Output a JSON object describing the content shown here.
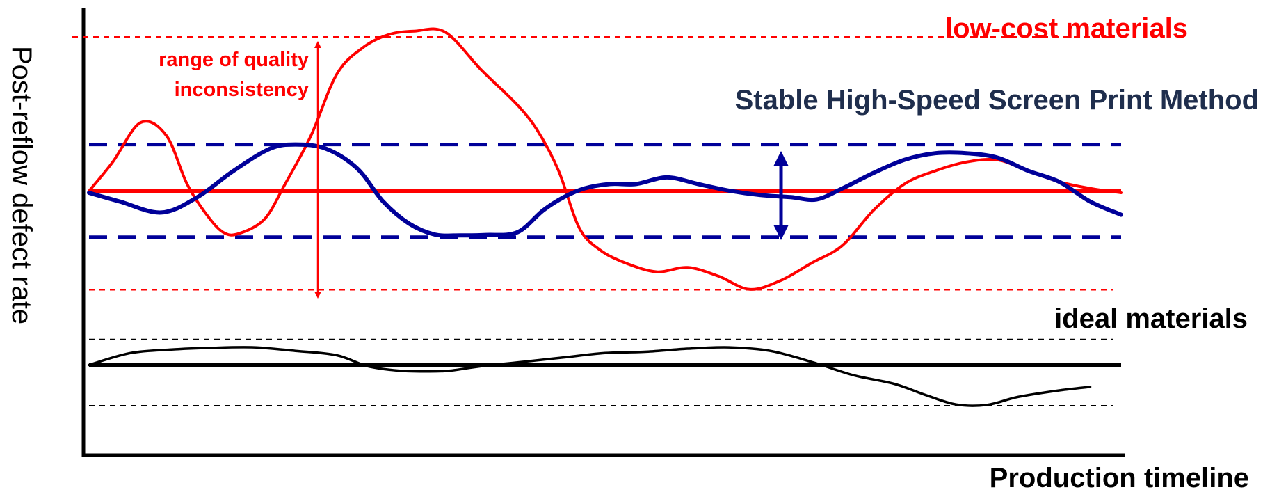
{
  "chart_data": {
    "type": "line",
    "title": "",
    "xlabel": "Production timeline",
    "ylabel": "Post-reflow defect rate",
    "grid": false,
    "legend": "none",
    "x_range": [
      0,
      100
    ],
    "y_range": [
      0,
      100
    ],
    "colors": {
      "low_cost": "#ff0000",
      "screen_print": "#000099",
      "ideal": "#000000"
    },
    "annotations": {
      "low_cost": "low-cost materials",
      "screen_print": "Stable High-Speed Screen Print Method",
      "ideal": "ideal materials",
      "range_line1": "range of quality",
      "range_line2": "inconsistency"
    },
    "reference_lines": [
      {
        "group": "low_cost",
        "kind": "upper-limit",
        "y": 93.5
      },
      {
        "group": "low_cost",
        "kind": "mean",
        "y": 58.4
      },
      {
        "group": "low_cost",
        "kind": "lower-limit",
        "y": 35.9
      },
      {
        "group": "screen_print",
        "kind": "upper-limit",
        "y": 69.0
      },
      {
        "group": "screen_print",
        "kind": "mean",
        "y": 58.4
      },
      {
        "group": "screen_print",
        "kind": "lower-limit",
        "y": 47.9
      },
      {
        "group": "ideal",
        "kind": "upper-limit",
        "y": 24.6
      },
      {
        "group": "ideal",
        "kind": "mean",
        "y": 18.7
      },
      {
        "group": "ideal",
        "kind": "lower-limit",
        "y": 9.5
      }
    ],
    "series": [
      {
        "group": "low_cost",
        "x": [
          0,
          2.3,
          5,
          7.5,
          9.5,
          11.4,
          13,
          14.5,
          17,
          19,
          21.5,
          24,
          26.5,
          29,
          31.5,
          34.5,
          38,
          41.5,
          43.5,
          45.5,
          47.5,
          49.5,
          52,
          55,
          58,
          61,
          64,
          67,
          70,
          73,
          76,
          79,
          82,
          85,
          88,
          91,
          94,
          97,
          100
        ],
        "y": [
          58.4,
          65,
          74,
          71,
          60,
          53,
          49,
          48.7,
          52,
          60,
          71,
          85,
          91,
          94,
          94.8,
          94.6,
          86,
          78,
          72,
          63,
          50,
          45,
          42,
          40,
          41,
          39,
          36,
          38,
          42,
          46,
          54,
          60,
          63,
          65,
          65.5,
          63,
          60.5,
          59,
          58
        ]
      },
      {
        "group": "screen_print",
        "x": [
          0,
          3,
          7,
          10.5,
          14,
          17.5,
          20,
          23,
          26,
          28.5,
          31,
          33.5,
          36,
          38.5,
          41.5,
          44,
          46,
          48,
          50.5,
          53,
          56,
          59,
          62,
          65,
          68,
          70.5,
          73,
          76,
          79,
          82,
          85,
          88,
          91,
          94,
          97,
          100
        ],
        "y": [
          58,
          56,
          53.5,
          57,
          63,
          68,
          69,
          68,
          63.5,
          56,
          51,
          48.5,
          48.3,
          48.4,
          49,
          54,
          57,
          59,
          60,
          60,
          61.5,
          60,
          58.5,
          57.5,
          57,
          56.5,
          59,
          62.5,
          65.5,
          67,
          67,
          66,
          63,
          60.5,
          56,
          53
        ]
      },
      {
        "group": "ideal",
        "x": [
          0,
          4,
          8,
          12,
          16,
          20,
          24,
          27,
          30,
          33,
          35,
          38,
          42,
          46,
          50,
          54,
          58,
          62,
          66,
          70,
          74,
          78,
          81,
          84,
          87,
          90,
          94,
          97
        ],
        "y": [
          18.8,
          21.5,
          22.3,
          22.7,
          22.8,
          22,
          21,
          18.5,
          17.5,
          17.3,
          17.5,
          18.5,
          19.5,
          20.5,
          21.5,
          21.8,
          22.5,
          22.8,
          22,
          19.5,
          16.5,
          14.5,
          12,
          9.8,
          9.7,
          11.5,
          13,
          13.8
        ]
      }
    ]
  }
}
